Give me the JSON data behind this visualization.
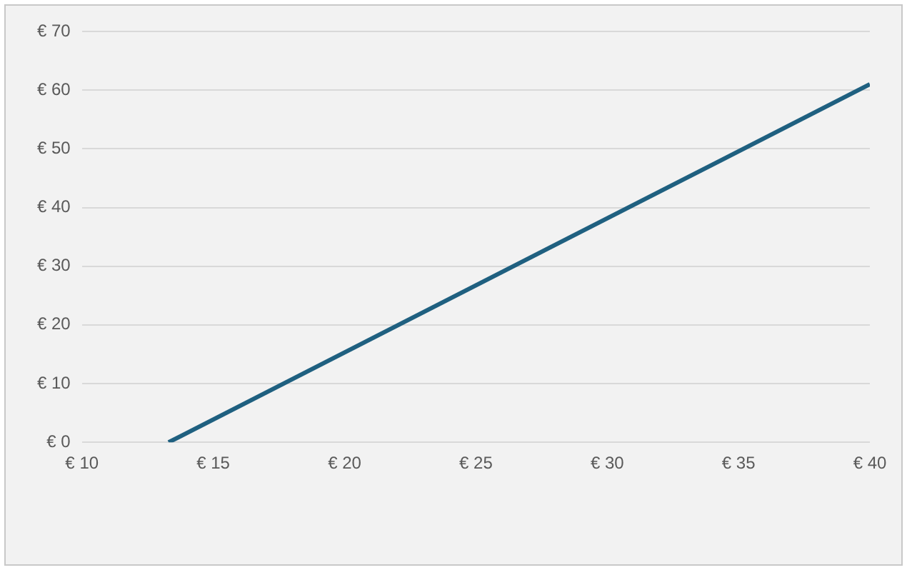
{
  "chart_data": {
    "type": "line",
    "x": [
      13.3,
      40
    ],
    "series": [
      {
        "color": "#1f6080",
        "values": [
          0,
          61
        ]
      }
    ],
    "xlim": [
      10,
      40
    ],
    "ylim": [
      0,
      70
    ],
    "xticks": [
      {
        "value": 10,
        "label": "€ 10"
      },
      {
        "value": 15,
        "label": "€ 15"
      },
      {
        "value": 20,
        "label": "€ 20"
      },
      {
        "value": 25,
        "label": "€ 25"
      },
      {
        "value": 30,
        "label": "€ 30"
      },
      {
        "value": 35,
        "label": "€ 35"
      },
      {
        "value": 40,
        "label": "€ 40"
      }
    ],
    "yticks": [
      {
        "value": 0,
        "label": "€ 0"
      },
      {
        "value": 10,
        "label": "€ 10"
      },
      {
        "value": 20,
        "label": "€ 20"
      },
      {
        "value": 30,
        "label": "€ 30"
      },
      {
        "value": 40,
        "label": "€ 40"
      },
      {
        "value": 50,
        "label": "€ 50"
      },
      {
        "value": 60,
        "label": "€ 60"
      },
      {
        "value": 70,
        "label": "€ 70"
      }
    ],
    "grid": "y",
    "legend": false,
    "marker": "none",
    "line_style": "solid"
  }
}
